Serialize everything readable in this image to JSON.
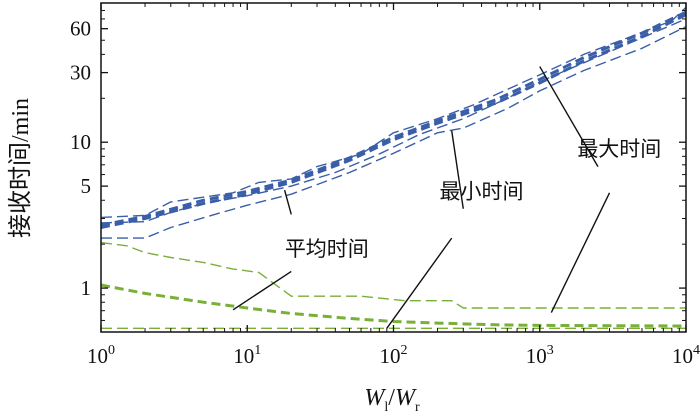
{
  "chart_data": {
    "type": "line",
    "xlabel": {
      "main": "W",
      "sub1": "l",
      "sep": "/",
      "main2": "W",
      "sub2": "r"
    },
    "ylabel": "接收时间/min",
    "x_scale": "log",
    "y_scale": "log",
    "xlim": [
      1,
      10000
    ],
    "ylim": [
      0.5,
      90
    ],
    "x_ticks": [
      {
        "value": 1,
        "base": "10",
        "exp": "0"
      },
      {
        "value": 10,
        "base": "10",
        "exp": "1"
      },
      {
        "value": 100,
        "base": "10",
        "exp": "2"
      },
      {
        "value": 1000,
        "base": "10",
        "exp": "3"
      },
      {
        "value": 10000,
        "base": "10",
        "exp": "4"
      }
    ],
    "y_ticks": [
      {
        "value": 1,
        "label": "1"
      },
      {
        "value": 5,
        "label": "5"
      },
      {
        "value": 10,
        "label": "10"
      },
      {
        "value": 30,
        "label": "30"
      },
      {
        "value": 60,
        "label": "60"
      }
    ],
    "grid": false,
    "legend": "none",
    "colors": {
      "blue": "#3a5ea8",
      "green": "#7aaf3a",
      "axis": "#111111"
    },
    "series": [
      {
        "group": "blue",
        "style": "thick",
        "values": [
          [
            1,
            2.6
          ],
          [
            2,
            3.0
          ],
          [
            5,
            3.8
          ],
          [
            10,
            4.4
          ],
          [
            20,
            5.3
          ],
          [
            50,
            7.5
          ],
          [
            100,
            10.4
          ],
          [
            200,
            13.5
          ],
          [
            500,
            18.5
          ],
          [
            1000,
            25.5
          ],
          [
            2000,
            36
          ],
          [
            5000,
            53
          ],
          [
            10000,
            75
          ]
        ]
      },
      {
        "group": "blue",
        "style": "thick",
        "values": [
          [
            1,
            2.7
          ],
          [
            2,
            3.1
          ],
          [
            5,
            4.0
          ],
          [
            10,
            4.6
          ],
          [
            20,
            5.5
          ],
          [
            50,
            7.8
          ],
          [
            100,
            10.8
          ],
          [
            200,
            14
          ],
          [
            500,
            19.5
          ],
          [
            1000,
            27
          ],
          [
            2000,
            38
          ],
          [
            5000,
            56
          ],
          [
            10000,
            78
          ]
        ]
      },
      {
        "group": "blue",
        "style": "thin",
        "values": [
          [
            1,
            3.05
          ],
          [
            2,
            3.15
          ],
          [
            3,
            3.9
          ],
          [
            5,
            4.2
          ],
          [
            8,
            4.5
          ],
          [
            12,
            5.3
          ],
          [
            20,
            5.6
          ],
          [
            30,
            6.8
          ],
          [
            60,
            8.3
          ],
          [
            100,
            11.6
          ],
          [
            200,
            14.5
          ],
          [
            350,
            18
          ],
          [
            600,
            23
          ],
          [
            1000,
            29
          ],
          [
            2000,
            40
          ],
          [
            4000,
            52
          ],
          [
            8000,
            68
          ],
          [
            10000,
            84
          ]
        ]
      },
      {
        "group": "blue",
        "style": "thin",
        "values": [
          [
            1,
            2.8
          ],
          [
            2,
            2.85
          ],
          [
            3,
            3.3
          ],
          [
            5,
            3.8
          ],
          [
            10,
            4.3
          ],
          [
            20,
            5.0
          ],
          [
            40,
            6.2
          ],
          [
            80,
            8.3
          ],
          [
            150,
            11.3
          ],
          [
            300,
            14.5
          ],
          [
            600,
            20
          ],
          [
            1000,
            26
          ],
          [
            2000,
            35
          ],
          [
            5000,
            52
          ],
          [
            10000,
            70
          ]
        ]
      },
      {
        "group": "blue",
        "style": "thin",
        "values": [
          [
            1,
            2.2
          ],
          [
            2,
            2.2
          ],
          [
            3,
            2.6
          ],
          [
            6,
            3.2
          ],
          [
            10,
            3.7
          ],
          [
            20,
            4.4
          ],
          [
            50,
            6.2
          ],
          [
            100,
            8.4
          ],
          [
            200,
            11.6
          ],
          [
            300,
            12.5
          ],
          [
            600,
            17
          ],
          [
            1000,
            22.5
          ],
          [
            2000,
            31
          ],
          [
            5000,
            44
          ],
          [
            10000,
            62
          ]
        ]
      },
      {
        "group": "green",
        "style": "thin",
        "values": [
          [
            1,
            2.05
          ],
          [
            1.5,
            1.95
          ],
          [
            2,
            1.75
          ],
          [
            3,
            1.62
          ],
          [
            5,
            1.5
          ],
          [
            8,
            1.35
          ],
          [
            12,
            1.28
          ],
          [
            20,
            0.88
          ],
          [
            60,
            0.88
          ],
          [
            120,
            0.82
          ],
          [
            250,
            0.82
          ],
          [
            300,
            0.73
          ],
          [
            10000,
            0.73
          ]
        ]
      },
      {
        "group": "green",
        "style": "thick",
        "values": [
          [
            1,
            1.05
          ],
          [
            2,
            0.92
          ],
          [
            5,
            0.8
          ],
          [
            10,
            0.73
          ],
          [
            20,
            0.67
          ],
          [
            50,
            0.62
          ],
          [
            100,
            0.59
          ],
          [
            200,
            0.575
          ],
          [
            500,
            0.56
          ],
          [
            1000,
            0.555
          ],
          [
            10000,
            0.55
          ]
        ]
      },
      {
        "group": "green",
        "style": "thin",
        "values": [
          [
            1,
            0.53
          ],
          [
            10000,
            0.53
          ]
        ]
      }
    ],
    "annotations": [
      {
        "text": "平均时间",
        "text_at": [
          35,
          1.85
        ],
        "arrow_tail": [
          20,
          3.2
        ],
        "arrow_head": [
          18,
          4.7
        ],
        "text_anchor": "middle"
      },
      {
        "text": "平均时间",
        "text_at": null,
        "arrow_tail": [
          20,
          1.3
        ],
        "arrow_head": [
          8,
          0.71
        ],
        "text_anchor": "middle"
      },
      {
        "text": "最小时间",
        "text_at": [
          400,
          4.6
        ],
        "arrow_tail": [
          300,
          3.5
        ],
        "arrow_head": [
          250,
          12
        ],
        "text_anchor": "middle"
      },
      {
        "text": "最小时间",
        "text_at": null,
        "arrow_tail": [
          250,
          2.2
        ],
        "arrow_head": [
          90,
          0.53
        ],
        "text_anchor": "middle"
      },
      {
        "text": "最大时间",
        "text_at": [
          3500,
          9
        ],
        "arrow_tail": [
          2500,
          6.8
        ],
        "arrow_head": [
          1000,
          33
        ],
        "text_anchor": "middle"
      },
      {
        "text": "最大时间",
        "text_at": null,
        "arrow_tail": [
          3000,
          4.5
        ],
        "arrow_head": [
          1200,
          0.68
        ],
        "text_anchor": "middle"
      }
    ]
  }
}
